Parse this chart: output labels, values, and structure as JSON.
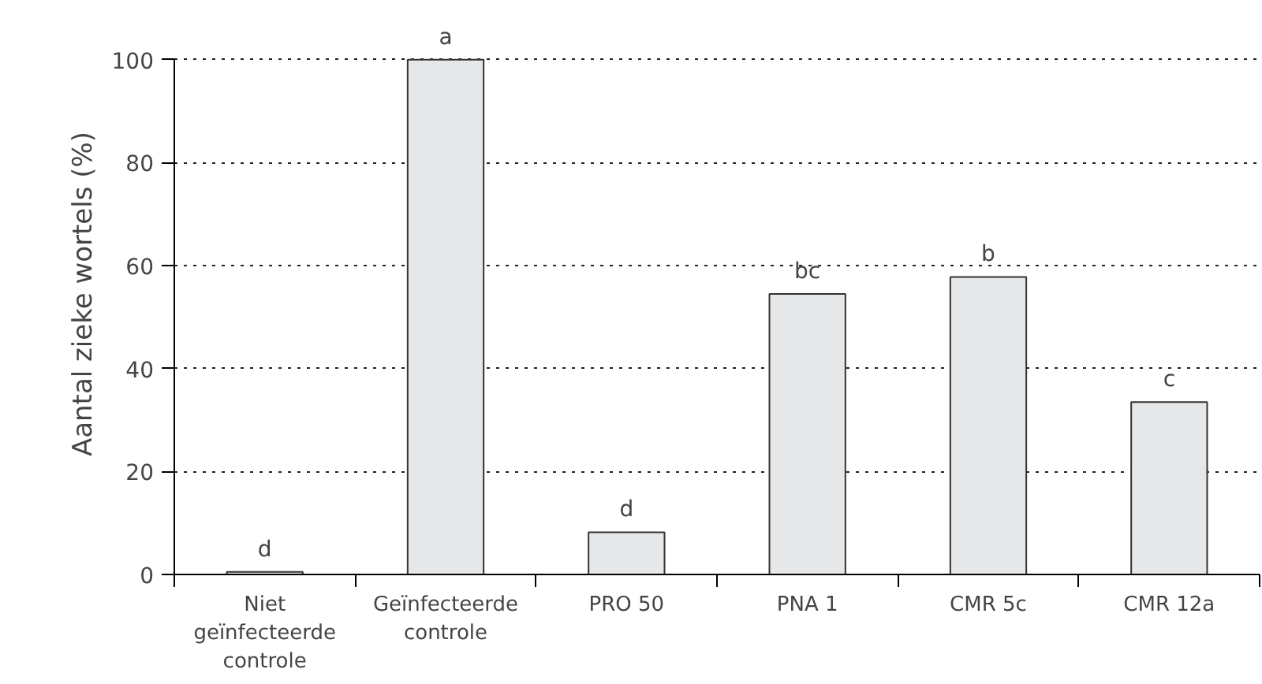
{
  "chart_data": {
    "type": "bar",
    "ylabel": "Aantal zieke wortels (%)",
    "categories": [
      "Niet geïnfecteerde controle",
      "Geïnfecteerde controle",
      "PRO 50",
      "PNA 1",
      "CMR 5c",
      "CMR 12a"
    ],
    "values": [
      0.5,
      100,
      8.2,
      54.5,
      57.8,
      33.5
    ],
    "color": "#e6e7e8",
    "ylim": [
      0,
      100
    ],
    "yticks": [
      0,
      20,
      40,
      60,
      80,
      100
    ],
    "grid": "y",
    "annotations": [
      {
        "text": "d",
        "x": "Niet geïnfecteerde controle",
        "y": 0.5
      },
      {
        "text": "a",
        "x": "Geïnfecteerde controle",
        "y": 100
      },
      {
        "text": "d",
        "x": "PRO 50",
        "y": 8.2
      },
      {
        "text": "bc",
        "x": "PNA 1",
        "y": 54.5
      },
      {
        "text": "b",
        "x": "CMR 5c",
        "y": 57.8
      },
      {
        "text": "c",
        "x": "CMR 12a",
        "y": 33.5
      }
    ]
  }
}
